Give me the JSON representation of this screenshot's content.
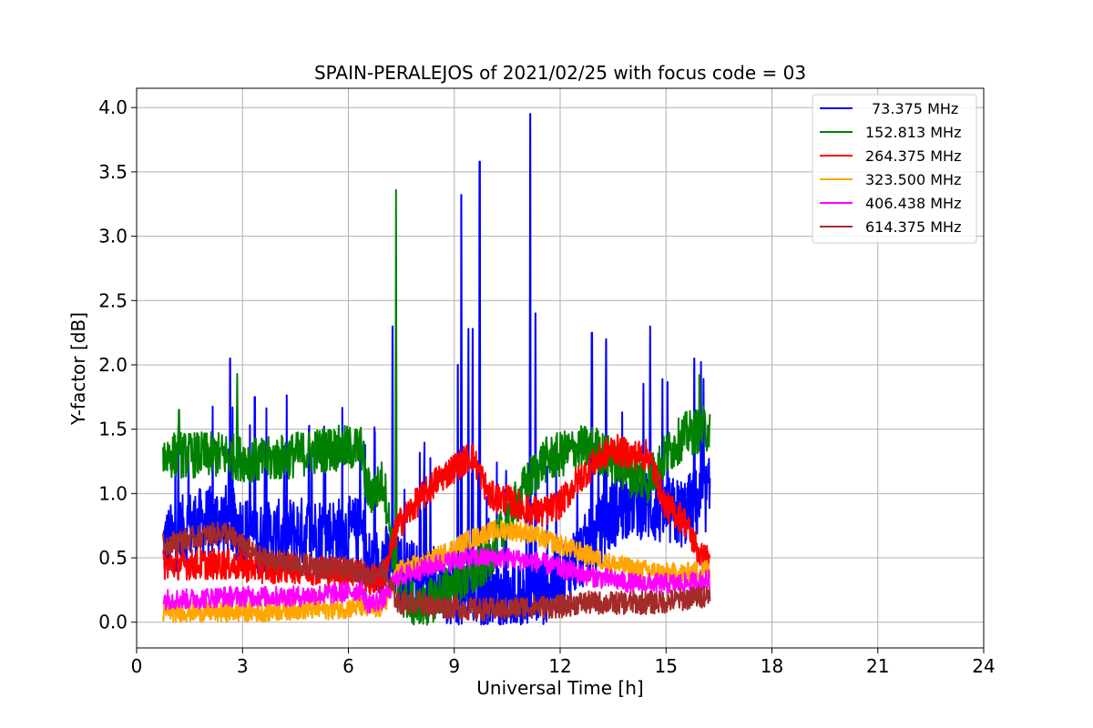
{
  "chart_data": {
    "type": "line",
    "title": "SPAIN-PERALEJOS of 2021/02/25 with focus code = 03",
    "xlabel": "Universal Time [h]",
    "ylabel": "Y-factor [dB]",
    "xlim": [
      0,
      24
    ],
    "ylim": [
      -0.2,
      4.15
    ],
    "xticks": [
      0,
      3,
      6,
      9,
      12,
      15,
      18,
      21,
      24
    ],
    "yticks": [
      0.0,
      0.5,
      1.0,
      1.5,
      2.0,
      2.5,
      3.0,
      3.5,
      4.0
    ],
    "xtick_labels": [
      "0",
      "3",
      "6",
      "9",
      "12",
      "15",
      "18",
      "21",
      "24"
    ],
    "ytick_labels": [
      "0.0",
      "0.5",
      "1.0",
      "1.5",
      "2.0",
      "2.5",
      "3.0",
      "3.5",
      "4.0"
    ],
    "grid": true,
    "legend_position": "top-right",
    "series": [
      {
        "name": "73.375 MHz",
        "color": "#0000ff",
        "x": [
          0.75,
          1.5,
          2.5,
          3.5,
          4.5,
          5.5,
          6.4,
          6.5,
          6.7,
          7.0,
          7.4,
          8.0,
          8.5,
          9.0,
          9.5,
          10.0,
          10.5,
          11.0,
          11.5,
          12.0,
          12.5,
          13.0,
          13.5,
          14.0,
          14.5,
          15.0,
          15.5,
          16.0,
          16.25
        ],
        "y": [
          0.6,
          0.75,
          0.8,
          0.65,
          0.7,
          0.7,
          0.7,
          0.45,
          0.45,
          0.5,
          0.4,
          0.35,
          0.3,
          0.25,
          0.2,
          0.2,
          0.15,
          0.2,
          0.25,
          0.35,
          0.5,
          0.65,
          0.85,
          0.95,
          0.9,
          0.85,
          0.85,
          0.95,
          1.0
        ],
        "spikes": [
          [
            2.65,
            2.05
          ],
          [
            3.35,
            1.75
          ],
          [
            7.25,
            2.3
          ],
          [
            9.1,
            2.0
          ],
          [
            9.2,
            3.32
          ],
          [
            9.4,
            2.28
          ],
          [
            9.52,
            2.28
          ],
          [
            9.72,
            3.58
          ],
          [
            11.15,
            3.95
          ],
          [
            11.3,
            2.4
          ],
          [
            12.9,
            2.25
          ],
          [
            13.3,
            2.2
          ],
          [
            14.55,
            2.3
          ],
          [
            15.8,
            2.05
          ]
        ]
      },
      {
        "name": "152.813 MHz",
        "color": "#008000",
        "x": [
          0.75,
          1.5,
          2.5,
          3.5,
          4.5,
          5.5,
          6.4,
          6.5,
          6.7,
          7.0,
          7.4,
          8.0,
          8.5,
          9.0,
          9.5,
          10.0,
          10.5,
          11.0,
          11.5,
          12.0,
          12.5,
          13.0,
          13.5,
          14.0,
          14.5,
          15.0,
          15.5,
          16.0,
          16.25
        ],
        "y": [
          1.3,
          1.3,
          1.3,
          1.25,
          1.3,
          1.35,
          1.35,
          1.05,
          1.0,
          1.1,
          0.25,
          0.1,
          0.2,
          0.3,
          0.35,
          0.5,
          0.8,
          1.05,
          1.25,
          1.3,
          1.35,
          1.35,
          1.25,
          1.15,
          1.1,
          1.3,
          1.45,
          1.5,
          1.5
        ],
        "spikes": [
          [
            1.2,
            1.65
          ],
          [
            2.85,
            1.93
          ],
          [
            7.35,
            3.36
          ],
          [
            15.95,
            1.92
          ]
        ]
      },
      {
        "name": "264.375 MHz",
        "color": "#ff0000",
        "x": [
          0.75,
          1.5,
          2.5,
          3.5,
          4.5,
          5.5,
          6.4,
          6.5,
          6.7,
          7.0,
          7.4,
          8.0,
          8.5,
          9.0,
          9.5,
          10.0,
          10.5,
          11.0,
          11.5,
          12.0,
          12.5,
          13.0,
          13.5,
          14.0,
          14.5,
          15.0,
          15.5,
          16.0,
          16.25
        ],
        "y": [
          0.45,
          0.45,
          0.45,
          0.42,
          0.42,
          0.4,
          0.38,
          0.33,
          0.32,
          0.35,
          0.75,
          0.95,
          1.1,
          1.2,
          1.3,
          0.98,
          0.95,
          0.88,
          0.85,
          0.92,
          1.1,
          1.25,
          1.35,
          1.3,
          1.3,
          0.9,
          0.8,
          0.5,
          0.48
        ],
        "spikes": []
      },
      {
        "name": "323.500 MHz",
        "color": "#ffa500",
        "x": [
          0.75,
          1.5,
          2.5,
          3.5,
          4.5,
          5.5,
          6.4,
          6.5,
          6.7,
          7.0,
          7.4,
          8.0,
          8.5,
          9.0,
          9.5,
          10.0,
          10.5,
          11.0,
          11.5,
          12.0,
          12.5,
          13.0,
          13.5,
          14.0,
          14.5,
          15.0,
          15.5,
          16.0,
          16.25
        ],
        "y": [
          0.08,
          0.08,
          0.08,
          0.08,
          0.1,
          0.1,
          0.12,
          0.1,
          0.1,
          0.12,
          0.4,
          0.45,
          0.5,
          0.58,
          0.65,
          0.7,
          0.72,
          0.7,
          0.65,
          0.6,
          0.55,
          0.5,
          0.45,
          0.42,
          0.4,
          0.38,
          0.38,
          0.4,
          0.42
        ],
        "spikes": []
      },
      {
        "name": "406.438 MHz",
        "color": "#ff00ff",
        "x": [
          0.75,
          1.5,
          2.5,
          3.5,
          4.5,
          5.5,
          6.4,
          6.5,
          6.7,
          7.0,
          7.4,
          8.0,
          8.5,
          9.0,
          9.5,
          10.0,
          10.5,
          11.0,
          11.5,
          12.0,
          12.5,
          13.0,
          13.5,
          14.0,
          14.5,
          15.0,
          15.5,
          16.0,
          16.25
        ],
        "y": [
          0.18,
          0.18,
          0.2,
          0.2,
          0.2,
          0.22,
          0.25,
          0.15,
          0.15,
          0.18,
          0.35,
          0.4,
          0.45,
          0.48,
          0.5,
          0.5,
          0.5,
          0.48,
          0.46,
          0.42,
          0.38,
          0.35,
          0.33,
          0.3,
          0.3,
          0.3,
          0.3,
          0.32,
          0.33
        ],
        "spikes": []
      },
      {
        "name": "614.375 MHz",
        "color": "#a52a2a",
        "x": [
          0.75,
          1.5,
          2.5,
          3.5,
          4.5,
          5.5,
          6.4,
          6.5,
          6.7,
          7.0,
          7.4,
          8.0,
          8.5,
          9.0,
          9.5,
          10.0,
          10.5,
          11.0,
          11.5,
          12.0,
          12.5,
          13.0,
          13.5,
          14.0,
          14.5,
          15.0,
          15.5,
          16.0,
          16.25
        ],
        "y": [
          0.6,
          0.65,
          0.7,
          0.5,
          0.45,
          0.42,
          0.4,
          0.35,
          0.38,
          0.4,
          0.15,
          0.15,
          0.12,
          0.12,
          0.1,
          0.1,
          0.1,
          0.12,
          0.12,
          0.12,
          0.15,
          0.15,
          0.15,
          0.15,
          0.15,
          0.16,
          0.18,
          0.2,
          0.22
        ],
        "spikes": []
      }
    ]
  }
}
